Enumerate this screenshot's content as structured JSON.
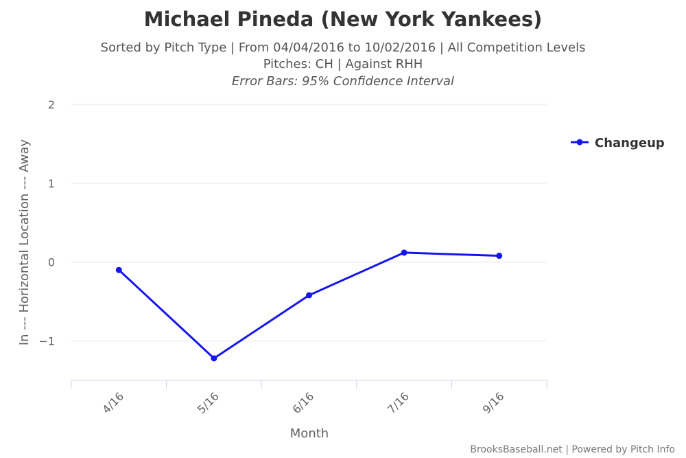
{
  "chart_data": {
    "type": "line",
    "title": "Michael Pineda (New York Yankees)",
    "subtitle_lines": [
      "Sorted by Pitch Type | From 04/04/2016 to 10/02/2016 | All Competition Levels",
      "Pitches: CH | Against RHH",
      "Error Bars: 95% Confidence Interval"
    ],
    "xlabel": "Month",
    "ylabel": "In --- Horizontal Location --- Away",
    "categories": [
      "4/16",
      "5/16",
      "6/16",
      "7/16",
      "9/16"
    ],
    "ylim": [
      -1.5,
      2
    ],
    "yticks": [
      -1,
      0,
      1,
      2
    ],
    "ytick_labels": [
      "−1",
      "0",
      "1",
      "2"
    ],
    "grid": true,
    "legend_position": "right",
    "series": [
      {
        "name": "Changeup",
        "color": "#1515ee",
        "values": [
          -0.1,
          -1.22,
          -0.42,
          0.12,
          0.08
        ]
      }
    ],
    "credits": "BrooksBaseball.net | Powered by Pitch Info"
  }
}
